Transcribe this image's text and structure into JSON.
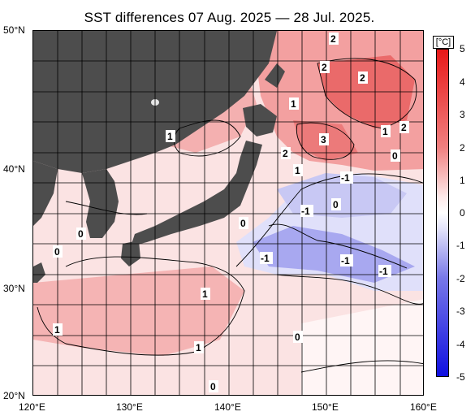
{
  "title": "SST differences 07 Aug. 2025 — 28 Jul. 2025.",
  "axes": {
    "lat_labels": [
      "50°N",
      "40°N",
      "30°N",
      "20°N"
    ],
    "lon_labels": [
      "120°E",
      "130°E",
      "140°E",
      "150°E",
      "160°E"
    ],
    "lat_range": [
      20,
      50
    ],
    "lon_range": [
      120,
      160
    ]
  },
  "colorbar": {
    "unit": "[°C]",
    "ticks": [
      "5",
      "4",
      "3",
      "2",
      "1",
      "0",
      "-1",
      "-2",
      "-3",
      "-4",
      "-5"
    ],
    "range": [
      -5,
      5
    ],
    "colors": {
      "max": "#e81818",
      "warm_mid": "#f08080",
      "warm_light": "#fde8e8",
      "neutral": "#ffffff",
      "cool_light": "#e2e2fa",
      "cool_mid": "#7878e8",
      "min": "#1010e0"
    }
  },
  "contour_labels": [
    "2",
    "2",
    "2",
    "1",
    "1",
    "2",
    "3",
    "1",
    "2",
    "0",
    "1",
    "-1",
    "0",
    "-1",
    "0",
    "0",
    "-1",
    "-1",
    "-1",
    "0",
    "1",
    "1",
    "1",
    "0",
    "0"
  ],
  "colors": {
    "land": "#4d4d4d",
    "grid": "#000000"
  }
}
